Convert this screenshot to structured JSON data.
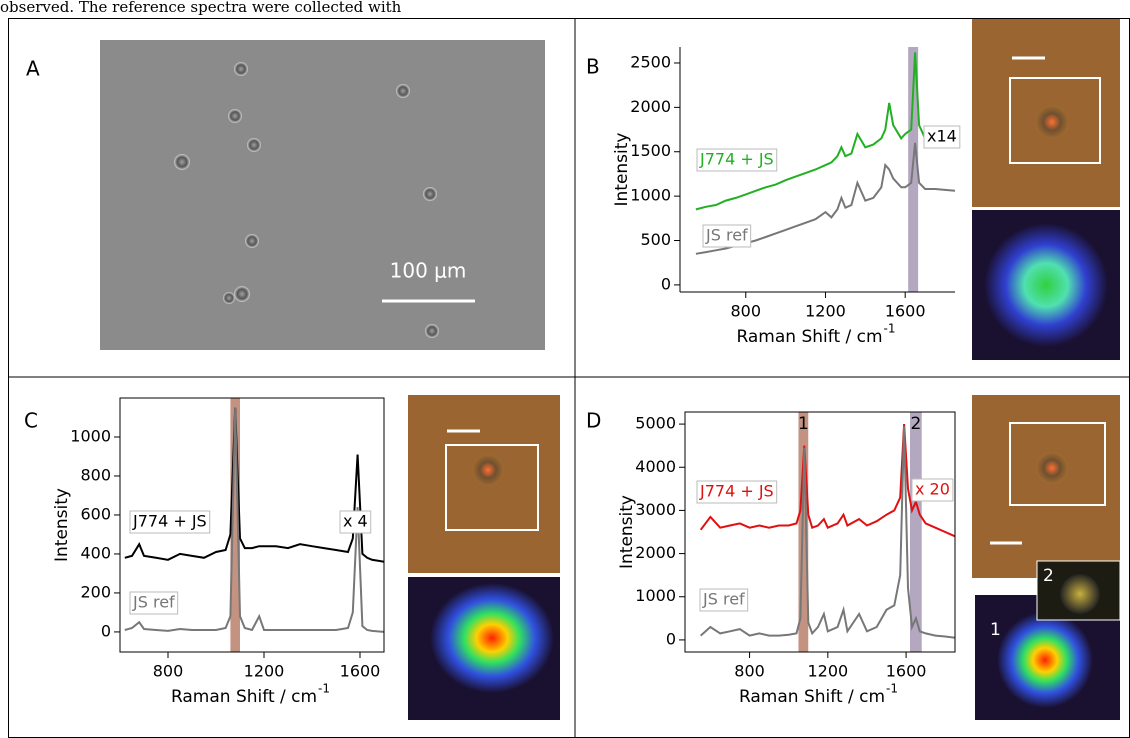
{
  "caption_fragment": "observed. The reference spectra were collected with",
  "panel_labels": [
    "A",
    "B",
    "C",
    "D"
  ],
  "scale_bar_label": "100 μm",
  "image_labels": [
    "1",
    "2"
  ],
  "chart_data": [
    {
      "type": "line",
      "ylabel": "Intensity",
      "xlabel": "Raman Shift / cm",
      "xlabel_sup": "-1",
      "box": false,
      "xlim": [
        470,
        1850
      ],
      "ylim": [
        -80,
        2680
      ],
      "xticks": [
        800,
        1200,
        1600
      ],
      "yticks": [
        0,
        500,
        1000,
        1500,
        2000,
        2500
      ],
      "bands": [
        {
          "from": 1615,
          "to": 1665,
          "color": "#8c7aa0"
        }
      ],
      "annotations": [
        "x14"
      ],
      "x": [
        550,
        600,
        650,
        700,
        750,
        800,
        850,
        900,
        950,
        1000,
        1050,
        1100,
        1150,
        1200,
        1230,
        1260,
        1280,
        1300,
        1330,
        1360,
        1400,
        1440,
        1480,
        1500,
        1520,
        1540,
        1580,
        1600,
        1630,
        1650,
        1670,
        1700,
        1750,
        1800,
        1850
      ],
      "series": [
        {
          "name": "J774 + JS",
          "color": "#22b022",
          "values": [
            850,
            880,
            900,
            950,
            980,
            1020,
            1060,
            1100,
            1130,
            1180,
            1220,
            1260,
            1300,
            1350,
            1380,
            1450,
            1550,
            1450,
            1480,
            1700,
            1550,
            1580,
            1650,
            1750,
            2050,
            1800,
            1650,
            1700,
            1750,
            2620,
            1800,
            1650,
            1680,
            1620,
            1600
          ]
        },
        {
          "name": "JS ref",
          "color": "#777777",
          "values": [
            350,
            370,
            390,
            410,
            440,
            470,
            500,
            540,
            580,
            620,
            660,
            700,
            740,
            820,
            760,
            850,
            980,
            870,
            900,
            1150,
            950,
            980,
            1100,
            1350,
            1300,
            1200,
            1100,
            1100,
            1150,
            1600,
            1150,
            1080,
            1080,
            1070,
            1060
          ]
        }
      ]
    },
    {
      "type": "line",
      "ylabel": "Intensity",
      "xlabel": "Raman Shift / cm",
      "xlabel_sup": "-1",
      "box": true,
      "xlim": [
        600,
        1700
      ],
      "ylim": [
        -103,
        1200
      ],
      "xticks": [
        800,
        1200,
        1600
      ],
      "yticks": [
        0,
        200,
        400,
        600,
        800,
        1000
      ],
      "bands": [
        {
          "from": 1060,
          "to": 1100,
          "color": "#a5573d"
        }
      ],
      "annotations": [
        "x 4"
      ],
      "x": [
        620,
        650,
        680,
        700,
        750,
        800,
        850,
        900,
        950,
        1000,
        1040,
        1060,
        1080,
        1100,
        1120,
        1150,
        1180,
        1200,
        1250,
        1300,
        1350,
        1400,
        1450,
        1500,
        1550,
        1570,
        1590,
        1610,
        1630,
        1650,
        1700
      ],
      "series": [
        {
          "name": "J774 + JS",
          "color": "#000000",
          "values": [
            380,
            390,
            450,
            390,
            380,
            370,
            400,
            390,
            380,
            410,
            420,
            500,
            1150,
            480,
            430,
            430,
            440,
            440,
            440,
            430,
            450,
            440,
            430,
            420,
            410,
            480,
            910,
            400,
            380,
            370,
            360
          ]
        },
        {
          "name": "JS ref",
          "color": "#777777",
          "values": [
            10,
            20,
            50,
            15,
            10,
            5,
            15,
            10,
            10,
            10,
            20,
            80,
            1150,
            80,
            20,
            10,
            80,
            10,
            10,
            10,
            10,
            10,
            10,
            10,
            20,
            100,
            640,
            30,
            10,
            5,
            0
          ]
        }
      ]
    },
    {
      "type": "line",
      "ylabel": "Intensity",
      "xlabel": "Raman Shift / cm",
      "xlabel_sup": "-1",
      "box": true,
      "xlim": [
        470,
        1850
      ],
      "ylim": [
        -280,
        5280
      ],
      "xticks": [
        800,
        1200,
        1600
      ],
      "yticks": [
        0,
        1000,
        2000,
        3000,
        4000,
        5000
      ],
      "bands": [
        {
          "from": 1050,
          "to": 1100,
          "color": "#a5573d",
          "label": "1"
        },
        {
          "from": 1620,
          "to": 1680,
          "color": "#8c7aa0",
          "label": "2"
        }
      ],
      "annotations": [
        "x 20"
      ],
      "x": [
        550,
        600,
        650,
        700,
        750,
        800,
        850,
        900,
        950,
        1000,
        1040,
        1060,
        1080,
        1100,
        1120,
        1150,
        1180,
        1200,
        1250,
        1280,
        1300,
        1360,
        1400,
        1450,
        1500,
        1540,
        1570,
        1590,
        1610,
        1630,
        1650,
        1670,
        1700,
        1750,
        1800,
        1850
      ],
      "series": [
        {
          "name": "J774 + JS",
          "color": "#e01010",
          "values": [
            2550,
            2850,
            2600,
            2650,
            2700,
            2600,
            2650,
            2600,
            2650,
            2650,
            2700,
            3000,
            4500,
            2900,
            2600,
            2650,
            2800,
            2600,
            2700,
            2900,
            2650,
            2800,
            2650,
            2750,
            2900,
            3000,
            3300,
            5000,
            3500,
            3000,
            3200,
            2900,
            2700,
            2600,
            2500,
            2400
          ]
        },
        {
          "name": "JS ref",
          "color": "#777777",
          "values": [
            100,
            300,
            150,
            200,
            250,
            100,
            150,
            100,
            100,
            120,
            150,
            500,
            4450,
            400,
            150,
            300,
            600,
            200,
            300,
            700,
            200,
            600,
            200,
            300,
            700,
            800,
            1500,
            4950,
            1200,
            300,
            500,
            200,
            150,
            100,
            80,
            50
          ]
        }
      ]
    }
  ]
}
